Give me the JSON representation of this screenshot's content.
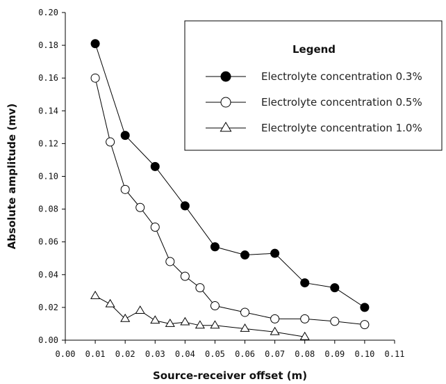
{
  "chart_data": {
    "type": "line",
    "title": "",
    "xlabel": "Source-receiver offset (m)",
    "ylabel": "Absolute amplitude (mv)",
    "xlim": [
      0.0,
      0.11
    ],
    "ylim": [
      0.0,
      0.2
    ],
    "x_ticks": [
      "0.00",
      "0.01",
      "0.02",
      "0.03",
      "0.04",
      "0.05",
      "0.06",
      "0.07",
      "0.08",
      "0.09",
      "0.10",
      "0.11"
    ],
    "y_ticks": [
      "0.00",
      "0.02",
      "0.04",
      "0.06",
      "0.08",
      "0.10",
      "0.12",
      "0.14",
      "0.16",
      "0.18",
      "0.20"
    ],
    "grid": false,
    "legend": {
      "title": "Legend",
      "position": "top-right"
    },
    "series": [
      {
        "name": "Electrolyte concentration 0.3%",
        "marker": "filled-circle",
        "color": "#000000",
        "x": [
          0.01,
          0.02,
          0.03,
          0.04,
          0.05,
          0.06,
          0.07,
          0.08,
          0.09,
          0.1
        ],
        "values": [
          0.181,
          0.125,
          0.106,
          0.082,
          0.057,
          0.052,
          0.053,
          0.035,
          0.032,
          0.02
        ]
      },
      {
        "name": "Electrolyte concentration 0.5%",
        "marker": "open-circle",
        "color": "#000000",
        "x": [
          0.01,
          0.015,
          0.02,
          0.025,
          0.03,
          0.035,
          0.04,
          0.045,
          0.05,
          0.06,
          0.07,
          0.08,
          0.09,
          0.1
        ],
        "values": [
          0.16,
          0.121,
          0.092,
          0.081,
          0.069,
          0.048,
          0.039,
          0.032,
          0.021,
          0.017,
          0.013,
          0.013,
          0.0115,
          0.0095
        ]
      },
      {
        "name": "Electrolyte concentration 1.0%",
        "marker": "open-triangle",
        "color": "#000000",
        "x": [
          0.01,
          0.015,
          0.02,
          0.025,
          0.03,
          0.035,
          0.04,
          0.045,
          0.05,
          0.06,
          0.07,
          0.08
        ],
        "values": [
          0.027,
          0.022,
          0.013,
          0.018,
          0.012,
          0.01,
          0.011,
          0.009,
          0.009,
          0.007,
          0.005,
          0.002
        ]
      }
    ]
  }
}
